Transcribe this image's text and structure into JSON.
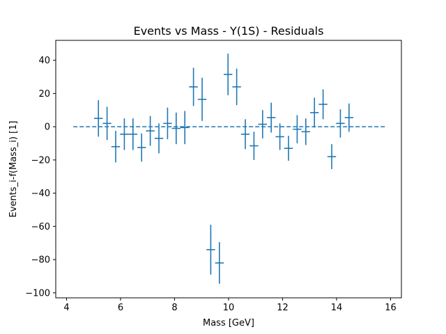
{
  "chart_data": {
    "type": "scatter",
    "title": "Events vs Mass - Y(1S) - Residuals",
    "xlabel": "Mass [GeV]",
    "ylabel": "Events_i-f(Mass_i) [1]",
    "xlim": [
      3.6,
      16.4
    ],
    "ylim": [
      -103,
      52
    ],
    "xticks": [
      4,
      6,
      8,
      10,
      12,
      14,
      16
    ],
    "yticks": [
      -100,
      -80,
      -60,
      -40,
      -20,
      0,
      20,
      40
    ],
    "grid": false,
    "color": "#1f77b4",
    "bin_half_width": 0.16,
    "reference_line": {
      "y": 0,
      "x_start": 4.25,
      "x_end": 15.8,
      "style": "dashed"
    },
    "points": [
      {
        "x": 5.18,
        "y": 5,
        "err": 11
      },
      {
        "x": 5.5,
        "y": 2,
        "err": 10
      },
      {
        "x": 5.82,
        "y": -12,
        "err": 9.5
      },
      {
        "x": 6.14,
        "y": -4.5,
        "err": 9.5
      },
      {
        "x": 6.46,
        "y": -4.5,
        "err": 9.5
      },
      {
        "x": 6.78,
        "y": -12.5,
        "err": 8.5
      },
      {
        "x": 7.1,
        "y": -2.5,
        "err": 9
      },
      {
        "x": 7.42,
        "y": -7,
        "err": 9
      },
      {
        "x": 7.74,
        "y": 2,
        "err": 9.5
      },
      {
        "x": 8.06,
        "y": -1,
        "err": 9.5
      },
      {
        "x": 8.38,
        "y": -0.5,
        "err": 10
      },
      {
        "x": 8.7,
        "y": 24,
        "err": 11.5
      },
      {
        "x": 9.02,
        "y": 16.5,
        "err": 13
      },
      {
        "x": 9.34,
        "y": -74,
        "err": 15
      },
      {
        "x": 9.66,
        "y": -82,
        "err": 12.5
      },
      {
        "x": 9.98,
        "y": 31.5,
        "err": 12.5
      },
      {
        "x": 10.3,
        "y": 24,
        "err": 11
      },
      {
        "x": 10.62,
        "y": -4.5,
        "err": 9
      },
      {
        "x": 10.94,
        "y": -11.5,
        "err": 8.5
      },
      {
        "x": 11.26,
        "y": 1.5,
        "err": 8.5
      },
      {
        "x": 11.58,
        "y": 5.5,
        "err": 9
      },
      {
        "x": 11.9,
        "y": -6,
        "err": 8
      },
      {
        "x": 12.22,
        "y": -13,
        "err": 7.5
      },
      {
        "x": 12.54,
        "y": -1.5,
        "err": 8.5
      },
      {
        "x": 12.86,
        "y": -3,
        "err": 8
      },
      {
        "x": 13.18,
        "y": 8.5,
        "err": 9
      },
      {
        "x": 13.5,
        "y": 13.5,
        "err": 9
      },
      {
        "x": 13.82,
        "y": -18,
        "err": 7.5
      },
      {
        "x": 14.14,
        "y": 2,
        "err": 8.5
      },
      {
        "x": 14.46,
        "y": 5.5,
        "err": 8.5
      }
    ]
  }
}
